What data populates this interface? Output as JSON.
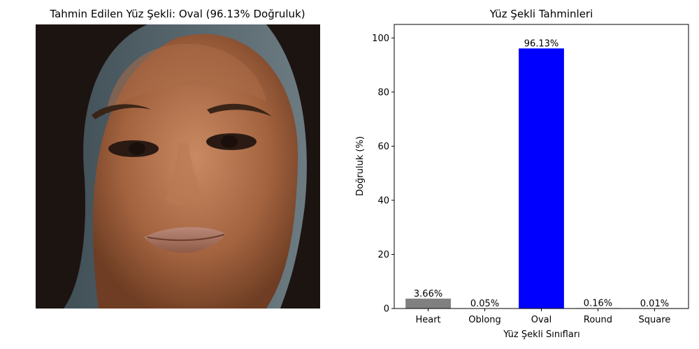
{
  "left_panel": {
    "title": "Tahmin Edilen Yüz Şekli: Oval (96.13% Doğruluk)"
  },
  "chart_data": {
    "type": "bar",
    "title": "Yüz Şekli Tahminleri",
    "xlabel": "Yüz Şekli Sınıfları",
    "ylabel": "Doğruluk (%)",
    "categories": [
      "Heart",
      "Oblong",
      "Oval",
      "Round",
      "Square"
    ],
    "values": [
      3.66,
      0.05,
      96.13,
      0.16,
      0.01
    ],
    "data_labels": [
      "3.66%",
      "0.05%",
      "96.13%",
      "0.16%",
      "0.01%"
    ],
    "bar_colors": [
      "#808080",
      "#808080",
      "#0000ff",
      "#808080",
      "#808080"
    ],
    "ylim": [
      0,
      105
    ],
    "yticks": [
      0,
      20,
      40,
      60,
      80,
      100
    ],
    "grid": false
  }
}
